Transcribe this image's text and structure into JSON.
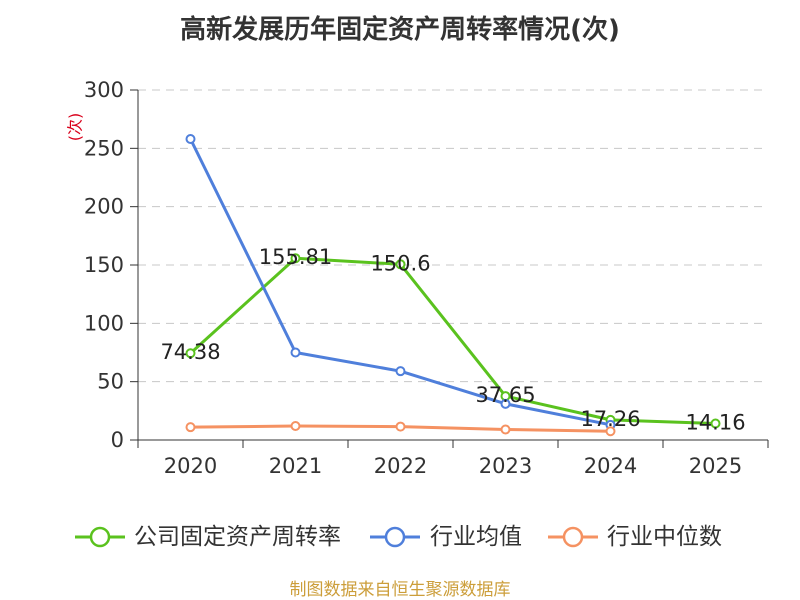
{
  "chart_data": {
    "type": "line",
    "title": "高新发展历年固定资产周转率情况(次)",
    "ylabel": "(次)",
    "categories": [
      "2020",
      "2021",
      "2022",
      "2023",
      "2024",
      "2025"
    ],
    "ylim": [
      0,
      300
    ],
    "yticks": [
      0,
      50,
      100,
      150,
      200,
      250,
      300
    ],
    "grid": true,
    "legend_position": "bottom",
    "series": [
      {
        "name": "公司固定资产周转率",
        "values": [
          74.38,
          155.81,
          150.6,
          37.65,
          17.26,
          14.16
        ],
        "color": "#5ac21e",
        "show_labels": true
      },
      {
        "name": "行业均值",
        "values": [
          258,
          75,
          59,
          31,
          13,
          null
        ],
        "color": "#4f7fdb",
        "show_labels": false
      },
      {
        "name": "行业中位数",
        "values": [
          11,
          12,
          11.5,
          9,
          7.5,
          null
        ],
        "color": "#f59262",
        "show_labels": false
      }
    ]
  },
  "footer": {
    "source": "制图数据来自恒生聚源数据库",
    "color": "#cc9e3a"
  },
  "colors": {
    "ylabel": "#d9001b"
  }
}
